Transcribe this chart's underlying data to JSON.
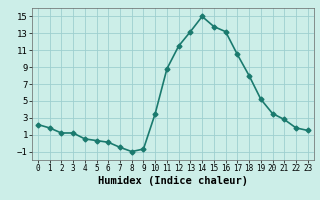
{
  "x": [
    0,
    1,
    2,
    3,
    4,
    5,
    6,
    7,
    8,
    9,
    10,
    11,
    12,
    13,
    14,
    15,
    16,
    17,
    18,
    19,
    20,
    21,
    22,
    23
  ],
  "y": [
    2.2,
    1.8,
    1.2,
    1.2,
    0.5,
    0.3,
    0.1,
    -0.5,
    -1.0,
    -0.7,
    3.5,
    8.8,
    11.5,
    13.2,
    15.0,
    13.8,
    13.2,
    10.5,
    8.0,
    5.2,
    3.5,
    2.8,
    1.8,
    1.5
  ],
  "line_color": "#1a7a6e",
  "marker": "D",
  "marker_size": 2.5,
  "bg_color": "#cceee8",
  "grid_color": "#9ecfcf",
  "xlabel": "Humidex (Indice chaleur)",
  "xlim": [
    -0.5,
    23.5
  ],
  "ylim": [
    -2,
    16
  ],
  "yticks": [
    -1,
    1,
    3,
    5,
    7,
    9,
    11,
    13,
    15
  ],
  "xticks": [
    0,
    1,
    2,
    3,
    4,
    5,
    6,
    7,
    8,
    9,
    10,
    11,
    12,
    13,
    14,
    15,
    16,
    17,
    18,
    19,
    20,
    21,
    22,
    23
  ],
  "xlabel_fontsize": 7.5,
  "ylabel_fontsize": 7.5,
  "tick_fontsize": 6.5,
  "line_width": 1.2
}
